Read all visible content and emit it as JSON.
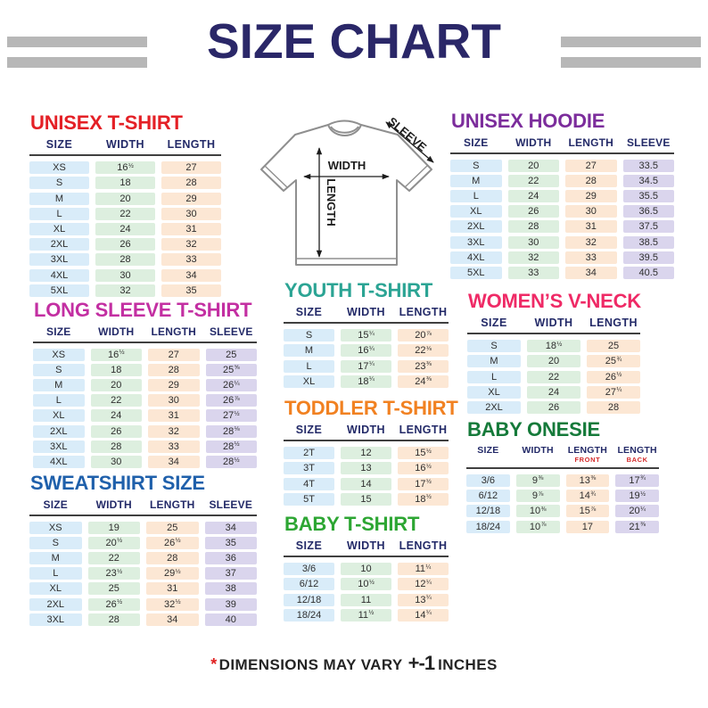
{
  "page_title": "SIZE CHART",
  "footer": {
    "asterisk": "*",
    "text": "DIMENSIONS MAY VARY",
    "tolerance": "+-1",
    "unit": "INCHES"
  },
  "diagram": {
    "width_label": "WIDTH",
    "length_label": "LENGTH",
    "sleeve_label": "SLEEVE"
  },
  "colors": {
    "title_navy": "#2a2768",
    "header_navy": "#232a68",
    "bar_gray": "#b7b7b7",
    "footer_red": "#e01f1f",
    "cell_blue": "#d9ecf9",
    "cell_green": "#ddefdf",
    "cell_peach": "#fce7d4",
    "cell_lavender": "#dad5ed"
  },
  "tables": [
    {
      "id": "unisex-tshirt",
      "title": "UNISEX T-SHIRT",
      "title_color": "#e42026",
      "columns": [
        {
          "label": "SIZE"
        },
        {
          "label": "WIDTH"
        },
        {
          "label": "LENGTH"
        }
      ],
      "col_colors": [
        "#d9ecf9",
        "#ddefdf",
        "#fce7d4"
      ],
      "rows": [
        [
          "XS",
          "16½",
          "27"
        ],
        [
          "S",
          "18",
          "28"
        ],
        [
          "M",
          "20",
          "29"
        ],
        [
          "L",
          "22",
          "30"
        ],
        [
          "XL",
          "24",
          "31"
        ],
        [
          "2XL",
          "26",
          "32"
        ],
        [
          "3XL",
          "28",
          "33"
        ],
        [
          "4XL",
          "30",
          "34"
        ],
        [
          "5XL",
          "32",
          "35"
        ]
      ]
    },
    {
      "id": "unisex-hoodie",
      "title": "UNISEX HOODIE",
      "title_color": "#7c2d9c",
      "columns": [
        {
          "label": "SIZE"
        },
        {
          "label": "WIDTH"
        },
        {
          "label": "LENGTH"
        },
        {
          "label": "SLEEVE"
        }
      ],
      "col_colors": [
        "#d9ecf9",
        "#ddefdf",
        "#fce7d4",
        "#dad5ed"
      ],
      "rows": [
        [
          "S",
          "20",
          "27",
          "33.5"
        ],
        [
          "M",
          "22",
          "28",
          "34.5"
        ],
        [
          "L",
          "24",
          "29",
          "35.5"
        ],
        [
          "XL",
          "26",
          "30",
          "36.5"
        ],
        [
          "2XL",
          "28",
          "31",
          "37.5"
        ],
        [
          "3XL",
          "30",
          "32",
          "38.5"
        ],
        [
          "4XL",
          "32",
          "33",
          "39.5"
        ],
        [
          "5XL",
          "33",
          "34",
          "40.5"
        ]
      ]
    },
    {
      "id": "long-sleeve-tshirt",
      "title": "LONG SLEEVE T-SHIRT",
      "title_color": "#c32fa2",
      "columns": [
        {
          "label": "SIZE"
        },
        {
          "label": "WIDTH"
        },
        {
          "label": "LENGTH"
        },
        {
          "label": "SLEEVE"
        }
      ],
      "col_colors": [
        "#d9ecf9",
        "#ddefdf",
        "#fce7d4",
        "#dad5ed"
      ],
      "rows": [
        [
          "XS",
          "16½",
          "27",
          "25"
        ],
        [
          "S",
          "18",
          "28",
          "25⅝"
        ],
        [
          "M",
          "20",
          "29",
          "26¼"
        ],
        [
          "L",
          "22",
          "30",
          "26⅞"
        ],
        [
          "XL",
          "24",
          "31",
          "27½"
        ],
        [
          "2XL",
          "26",
          "32",
          "28⅛"
        ],
        [
          "3XL",
          "28",
          "33",
          "28½"
        ],
        [
          "4XL",
          "30",
          "34",
          "28½"
        ]
      ]
    },
    {
      "id": "youth-tshirt",
      "title": "YOUTH T-SHIRT",
      "title_color": "#2ba494",
      "columns": [
        {
          "label": "SIZE"
        },
        {
          "label": "WIDTH"
        },
        {
          "label": "LENGTH"
        }
      ],
      "col_colors": [
        "#d9ecf9",
        "#ddefdf",
        "#fce7d4"
      ],
      "rows": [
        [
          "S",
          "15¼",
          "20⅞"
        ],
        [
          "M",
          "16¼",
          "22⅛"
        ],
        [
          "L",
          "17¼",
          "23⅜"
        ],
        [
          "XL",
          "18¼",
          "24⅜"
        ]
      ]
    },
    {
      "id": "womens-vneck",
      "title": "WOMEN’S V-NECK",
      "title_color": "#ef2a66",
      "columns": [
        {
          "label": "SIZE"
        },
        {
          "label": "WIDTH"
        },
        {
          "label": "LENGTH"
        }
      ],
      "col_colors": [
        "#d9ecf9",
        "#ddefdf",
        "#fce7d4"
      ],
      "rows": [
        [
          "S",
          "18½",
          "25"
        ],
        [
          "M",
          "20",
          "25¾"
        ],
        [
          "L",
          "22",
          "26½"
        ],
        [
          "XL",
          "24",
          "27¼"
        ],
        [
          "2XL",
          "26",
          "28"
        ]
      ]
    },
    {
      "id": "toddler-tshirt",
      "title": "TODDLER T-SHIRT",
      "title_color": "#f18121",
      "columns": [
        {
          "label": "SIZE"
        },
        {
          "label": "WIDTH"
        },
        {
          "label": "LENGTH"
        }
      ],
      "col_colors": [
        "#d9ecf9",
        "#ddefdf",
        "#fce7d4"
      ],
      "rows": [
        [
          "2T",
          "12",
          "15½"
        ],
        [
          "3T",
          "13",
          "16½"
        ],
        [
          "4T",
          "14",
          "17½"
        ],
        [
          "5T",
          "15",
          "18½"
        ]
      ]
    },
    {
      "id": "baby-onesie",
      "title": "BABY ONESIE",
      "title_color": "#157a3a",
      "columns": [
        {
          "label": "SIZE"
        },
        {
          "label": "WIDTH"
        },
        {
          "label": "LENGTH",
          "sub": "FRONT"
        },
        {
          "label": "LENGTH",
          "sub": "BACK"
        }
      ],
      "col_colors": [
        "#d9ecf9",
        "#ddefdf",
        "#fce7d4",
        "#dad5ed"
      ],
      "rows": [
        [
          "3/6",
          "9⅜",
          "13⅜",
          "17¾"
        ],
        [
          "6/12",
          "9⅞",
          "14¾",
          "19½"
        ],
        [
          "12/18",
          "10⅜",
          "15⅞",
          "20¼"
        ],
        [
          "18/24",
          "10⅞",
          "17",
          "21⅜"
        ]
      ]
    },
    {
      "id": "sweatshirt",
      "title": "SWEATSHIRT SIZE",
      "title_color": "#1f60ab",
      "columns": [
        {
          "label": "SIZE"
        },
        {
          "label": "WIDTH"
        },
        {
          "label": "LENGTH"
        },
        {
          "label": "SLEEVE"
        }
      ],
      "col_colors": [
        "#d9ecf9",
        "#ddefdf",
        "#fce7d4",
        "#dad5ed"
      ],
      "rows": [
        [
          "XS",
          "19",
          "25",
          "34"
        ],
        [
          "S",
          "20½",
          "26½",
          "35"
        ],
        [
          "M",
          "22",
          "28",
          "36"
        ],
        [
          "L",
          "23½",
          "29½",
          "37"
        ],
        [
          "XL",
          "25",
          "31",
          "38"
        ],
        [
          "2XL",
          "26½",
          "32½",
          "39"
        ],
        [
          "3XL",
          "28",
          "34",
          "40"
        ]
      ]
    },
    {
      "id": "baby-tshirt",
      "title": "BABY T-SHIRT",
      "title_color": "#2da633",
      "columns": [
        {
          "label": "SIZE"
        },
        {
          "label": "WIDTH"
        },
        {
          "label": "LENGTH"
        }
      ],
      "col_colors": [
        "#d9ecf9",
        "#ddefdf",
        "#fce7d4"
      ],
      "rows": [
        [
          "3/6",
          "10",
          "11¼"
        ],
        [
          "6/12",
          "10½",
          "12¼"
        ],
        [
          "12/18",
          "11",
          "13¼"
        ],
        [
          "18/24",
          "11½",
          "14¼"
        ]
      ]
    }
  ]
}
